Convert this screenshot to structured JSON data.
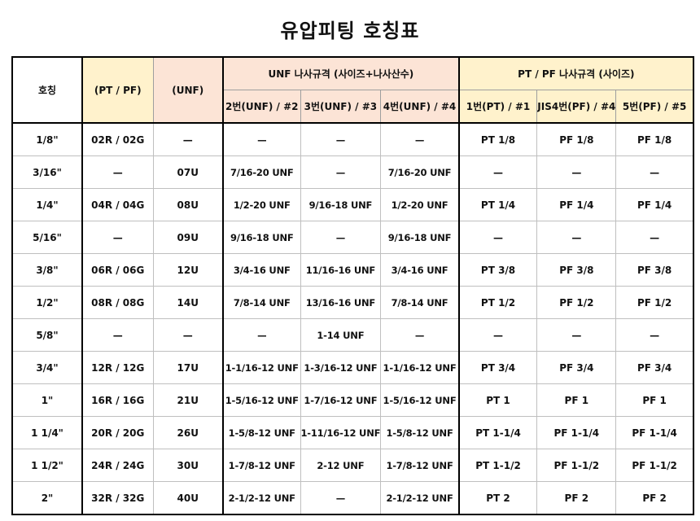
{
  "title": "유압피팅 호칭표",
  "header": {
    "col_name": "호칭",
    "col_ptpf": "(PT / PF)",
    "col_unf": "(UNF)",
    "group_unf": "UNF 나사규격 (사이즈+나사산수)",
    "group_pt": "PT / PF 나사규격 (사이즈)",
    "sub": [
      "2번(UNF) / #2",
      "3번(UNF) / #3",
      "4번(UNF) / #4",
      "1번(PT) / #1",
      "JIS4번(PF) / #4",
      "5번(PF) / #5"
    ]
  },
  "colors": {
    "yellow_header": "#fff2cc",
    "salmon_header": "#fce4d6"
  },
  "rows": [
    [
      "1/8\"",
      "02R / 02G",
      "—",
      "—",
      "—",
      "—",
      "PT 1/8",
      "PF 1/8",
      "PF 1/8"
    ],
    [
      "3/16\"",
      "—",
      "07U",
      "7/16-20 UNF",
      "—",
      "7/16-20 UNF",
      "—",
      "—",
      "—"
    ],
    [
      "1/4\"",
      "04R / 04G",
      "08U",
      "1/2-20 UNF",
      "9/16-18 UNF",
      "1/2-20 UNF",
      "PT 1/4",
      "PF 1/4",
      "PF 1/4"
    ],
    [
      "5/16\"",
      "—",
      "09U",
      "9/16-18 UNF",
      "—",
      "9/16-18 UNF",
      "—",
      "—",
      "—"
    ],
    [
      "3/8\"",
      "06R / 06G",
      "12U",
      "3/4-16 UNF",
      "11/16-16 UNF",
      "3/4-16 UNF",
      "PT 3/8",
      "PF 3/8",
      "PF 3/8"
    ],
    [
      "1/2\"",
      "08R / 08G",
      "14U",
      "7/8-14 UNF",
      "13/16-16 UNF",
      "7/8-14 UNF",
      "PT 1/2",
      "PF 1/2",
      "PF 1/2"
    ],
    [
      "5/8\"",
      "—",
      "—",
      "—",
      "1-14 UNF",
      "—",
      "—",
      "—",
      "—"
    ],
    [
      "3/4\"",
      "12R / 12G",
      "17U",
      "1-1/16-12 UNF",
      "1-3/16-12 UNF",
      "1-1/16-12 UNF",
      "PT 3/4",
      "PF 3/4",
      "PF 3/4"
    ],
    [
      "1\"",
      "16R / 16G",
      "21U",
      "1-5/16-12 UNF",
      "1-7/16-12 UNF",
      "1-5/16-12 UNF",
      "PT 1",
      "PF 1",
      "PF 1"
    ],
    [
      "1 1/4\"",
      "20R / 20G",
      "26U",
      "1-5/8-12 UNF",
      "1-11/16-12 UNF",
      "1-5/8-12 UNF",
      "PT 1-1/4",
      "PF 1-1/4",
      "PF 1-1/4"
    ],
    [
      "1 1/2\"",
      "24R / 24G",
      "30U",
      "1-7/8-12 UNF",
      "2-12 UNF",
      "1-7/8-12 UNF",
      "PT 1-1/2",
      "PF 1-1/2",
      "PF 1-1/2"
    ],
    [
      "2\"",
      "32R / 32G",
      "40U",
      "2-1/2-12 UNF",
      "—",
      "2-1/2-12 UNF",
      "PT 2",
      "PF 2",
      "PF 2"
    ]
  ]
}
